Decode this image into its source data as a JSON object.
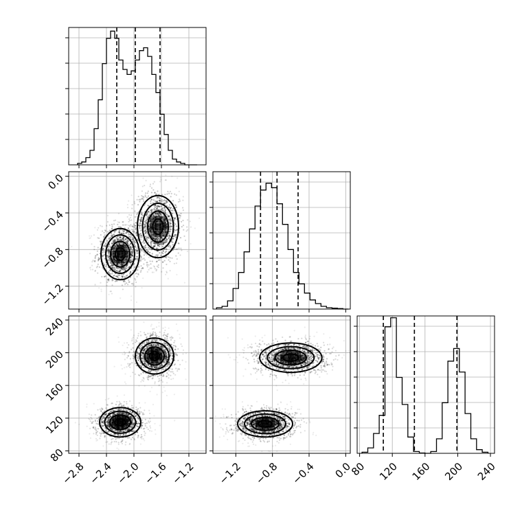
{
  "chart_data": {
    "type": "corner",
    "grid": true,
    "colors": {
      "line": "#000000",
      "grid": "#b0b0b0",
      "density": "#000000"
    },
    "parameters": [
      {
        "index": 0,
        "range": [
          -2.95,
          -0.95
        ],
        "ticks": [
          -2.8,
          -2.4,
          -2.0,
          -1.6,
          -1.2
        ],
        "tick_labels": [
          "−2.8",
          "−2.4",
          "−2.0",
          "−1.6",
          "−1.2"
        ]
      },
      {
        "index": 1,
        "range": [
          -1.45,
          0.05
        ],
        "ticks": [
          -1.2,
          -0.8,
          -0.4,
          0.0
        ],
        "tick_labels": [
          "−1.2",
          "−0.8",
          "−0.4",
          "0.0"
        ]
      },
      {
        "index": 2,
        "range": [
          77,
          245
        ],
        "ticks": [
          80,
          120,
          160,
          200,
          240
        ],
        "tick_labels": [
          "80",
          "120",
          "160",
          "200",
          "240"
        ]
      }
    ],
    "histograms": [
      {
        "param": 0,
        "bin_edges": [
          -2.82,
          -2.76,
          -2.7,
          -2.64,
          -2.58,
          -2.52,
          -2.46,
          -2.4,
          -2.34,
          -2.28,
          -2.22,
          -2.16,
          -2.1,
          -2.04,
          -1.98,
          -1.92,
          -1.86,
          -1.8,
          -1.74,
          -1.68,
          -1.62,
          -1.56,
          -1.5,
          -1.44,
          -1.38,
          -1.32,
          -1.26,
          -1.2,
          -1.14,
          -1.08
        ],
        "counts": [
          2,
          4,
          10,
          20,
          50,
          90,
          140,
          175,
          185,
          175,
          145,
          132,
          125,
          130,
          145,
          158,
          162,
          150,
          125,
          100,
          70,
          42,
          20,
          8,
          4,
          2,
          0,
          0,
          0
        ],
        "max": 190,
        "quantiles": [
          -2.25,
          -1.98,
          -1.62
        ]
      },
      {
        "param": 1,
        "bin_edges": [
          -1.41,
          -1.35,
          -1.29,
          -1.23,
          -1.17,
          -1.11,
          -1.05,
          -0.99,
          -0.93,
          -0.87,
          -0.81,
          -0.75,
          -0.69,
          -0.63,
          -0.57,
          -0.51,
          -0.45,
          -0.39,
          -0.33,
          -0.27,
          -0.21,
          -0.15,
          -0.09,
          -0.03,
          0.03
        ],
        "counts": [
          3,
          6,
          18,
          45,
          80,
          125,
          175,
          225,
          260,
          275,
          265,
          230,
          185,
          130,
          80,
          55,
          35,
          20,
          12,
          6,
          3,
          2,
          1,
          0
        ],
        "max": 300,
        "quantiles": [
          -0.93,
          -0.75,
          -0.52
        ]
      },
      {
        "param": 2,
        "bin_edges": [
          83,
          90,
          97,
          104,
          111,
          118,
          125,
          132,
          139,
          146,
          153,
          160,
          167,
          174,
          181,
          188,
          195,
          202,
          209,
          216,
          223,
          230,
          237
        ],
        "counts": [
          3,
          15,
          55,
          105,
          350,
          375,
          210,
          135,
          45,
          5,
          1,
          0,
          5,
          40,
          140,
          255,
          290,
          225,
          110,
          40,
          10,
          3
        ],
        "max": 380,
        "quantiles": [
          109,
          147,
          199
        ]
      }
    ],
    "pairs": [
      {
        "x_param": 0,
        "y_param": 1,
        "modes": [
          {
            "mean": [
              -2.2,
              -0.85
            ],
            "sd": [
              0.14,
              0.14
            ],
            "rot": 0,
            "weight": 0.5
          },
          {
            "mean": [
              -1.65,
              -0.55
            ],
            "sd": [
              0.15,
              0.17
            ],
            "rot": 0,
            "weight": 0.5
          }
        ]
      },
      {
        "x_param": 0,
        "y_param": 2,
        "modes": [
          {
            "mean": [
              -2.2,
              115
            ],
            "sd": [
              0.15,
              9
            ],
            "rot": -0.5,
            "weight": 0.5
          },
          {
            "mean": [
              -1.7,
              196
            ],
            "sd": [
              0.14,
              11
            ],
            "rot": 0,
            "weight": 0.5
          }
        ]
      },
      {
        "x_param": 1,
        "y_param": 2,
        "modes": [
          {
            "mean": [
              -0.88,
              113
            ],
            "sd": [
              0.15,
              8
            ],
            "rot": -0.55,
            "weight": 0.5
          },
          {
            "mean": [
              -0.6,
              194
            ],
            "sd": [
              0.17,
              9
            ],
            "rot": 0,
            "weight": 0.5
          }
        ]
      }
    ]
  }
}
